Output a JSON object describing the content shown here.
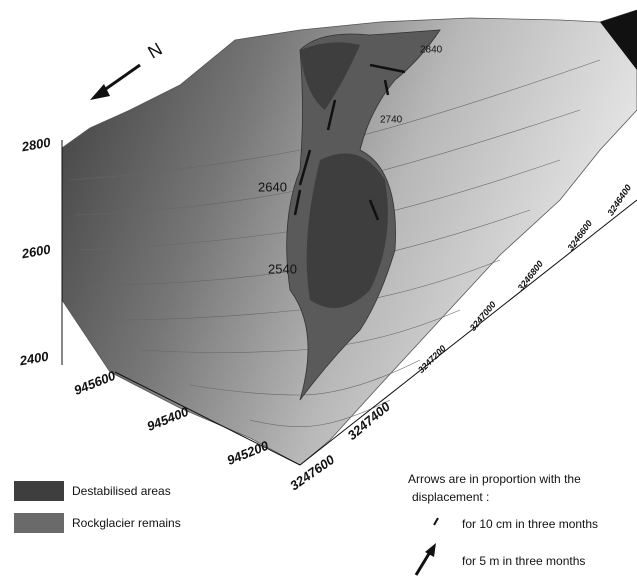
{
  "north_label": "N",
  "vertical_axis": {
    "ticks": [
      "2800",
      "2600",
      "2400"
    ]
  },
  "left_axis": {
    "ticks": [
      "945600",
      "945400",
      "945200"
    ]
  },
  "right_axis": {
    "ticks": [
      "3247600",
      "3247400",
      "3247200",
      "3247000",
      "3246800",
      "3246600",
      "3246400"
    ]
  },
  "contour_labels": [
    "2840",
    "2740",
    "2640",
    "2540"
  ],
  "legend": {
    "items": [
      {
        "label": "Destabilised areas"
      },
      {
        "label": "Rockglacier remains"
      }
    ]
  },
  "arrow_note": {
    "title": "Arrows are in proportion with the displacement :",
    "small": "for 10 cm in three months",
    "large": "for 5 m in three months"
  }
}
